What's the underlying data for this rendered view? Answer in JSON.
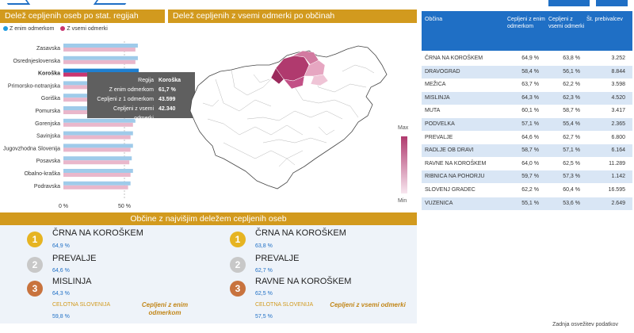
{
  "header": {
    "left_title": "Delež cepljenih oseb po stat. regijah",
    "map_title": "Delež cepljenih z vsemi odmerki po občinah",
    "bottom_title": "Občine z najvišjim deležem cepljenih oseb"
  },
  "colors": {
    "accent": "#d29a1e",
    "blue": "#1f6fc5",
    "series1": "#8ec3e8",
    "series2": "#e8b3c8",
    "map_max": "#b03a6e",
    "map_min": "#f7e6ef"
  },
  "legend": {
    "s1": "Z enim odmerkom",
    "s2": "Z vsemi odmerki"
  },
  "chart_data": {
    "type": "bar",
    "orientation": "horizontal",
    "categories": [
      "Zasavska",
      "Osrednjeslovenska",
      "Koroška",
      "Primorsko-notranjska",
      "Goriška",
      "Pomurska",
      "Gorenjska",
      "Savinjska",
      "Jugovzhodna Slovenija",
      "Posavska",
      "Obalno-kraška",
      "Podravska"
    ],
    "series": [
      {
        "name": "Z enim odmerkom",
        "values": [
          61,
          61,
          61.7,
          58,
          57,
          57,
          59,
          57,
          57,
          56,
          57,
          55
        ]
      },
      {
        "name": "Z vsemi odmerki",
        "values": [
          59,
          59,
          59.5,
          56,
          55,
          55,
          57,
          55,
          55,
          54,
          55,
          53
        ]
      }
    ],
    "selected": "Koroška",
    "xlim": [
      0,
      100
    ],
    "xticks": [
      "0 %",
      "50 %"
    ]
  },
  "tooltip": {
    "rows": [
      {
        "k": "Regija",
        "v": "Koroška"
      },
      {
        "k": "Z enim odmerkom",
        "v": "61,7 %"
      },
      {
        "k": "Cepljeni z 1 odmerkom",
        "v": "43.599"
      },
      {
        "k": "Cepljeni z vsemi odmerki",
        "v": "42.340"
      }
    ]
  },
  "map_legend": {
    "max": "Max",
    "min": "Min"
  },
  "table": {
    "headers": [
      "Občina",
      "Cepljeni z enim odmerkom",
      "Cepljeni z vsemi odmerki",
      "Št. prebivalcev"
    ],
    "rows": [
      [
        "ČRNA NA KOROŠKEM",
        "64,9 %",
        "63,8 %",
        "3.252"
      ],
      [
        "DRAVOGRAD",
        "58,4 %",
        "56,1 %",
        "8.844"
      ],
      [
        "MEŽICA",
        "63,7 %",
        "62,2 %",
        "3.598"
      ],
      [
        "MISLINJA",
        "64,3 %",
        "62,3 %",
        "4.520"
      ],
      [
        "MUTA",
        "60,1 %",
        "58,7 %",
        "3.417"
      ],
      [
        "PODVELKA",
        "57,1 %",
        "55,4 %",
        "2.365"
      ],
      [
        "PREVALJE",
        "64,6 %",
        "62,7 %",
        "6.800"
      ],
      [
        "RADLJE OB DRAVI",
        "58,7 %",
        "57,1 %",
        "6.164"
      ],
      [
        "RAVNE NA KOROŠKEM",
        "64,0 %",
        "62,5 %",
        "11.289"
      ],
      [
        "RIBNICA NA POHORJU",
        "59,7 %",
        "57,3 %",
        "1.142"
      ],
      [
        "SLOVENJ GRADEC",
        "62,2 %",
        "60,4 %",
        "16.595"
      ],
      [
        "VUZENICA",
        "55,1 %",
        "53,6 %",
        "2.649"
      ]
    ]
  },
  "ranking": {
    "one_dose": [
      {
        "rank": "1",
        "name": "ČRNA NA KOROŠKEM",
        "value": "64,9 %"
      },
      {
        "rank": "2",
        "name": "PREVALJE",
        "value": "64,6 %"
      },
      {
        "rank": "3",
        "name": "MISLINJA",
        "value": "64,3 %"
      }
    ],
    "all_doses": [
      {
        "rank": "1",
        "name": "ČRNA NA KOROŠKEM",
        "value": "63,8 %"
      },
      {
        "rank": "2",
        "name": "PREVALJE",
        "value": "62,7 %"
      },
      {
        "rank": "3",
        "name": "RAVNE NA KOROŠKEM",
        "value": "62,5 %"
      }
    ],
    "total_label": "CELOTNA SLOVENIJA",
    "total_one": "59,8 %",
    "total_all": "57,5 %",
    "caption_one": "Cepljeni z enim odmerkom",
    "caption_all": "Cepljeni z vsemi odmerki"
  },
  "footer": "Zadnja osvežitev podatkov"
}
